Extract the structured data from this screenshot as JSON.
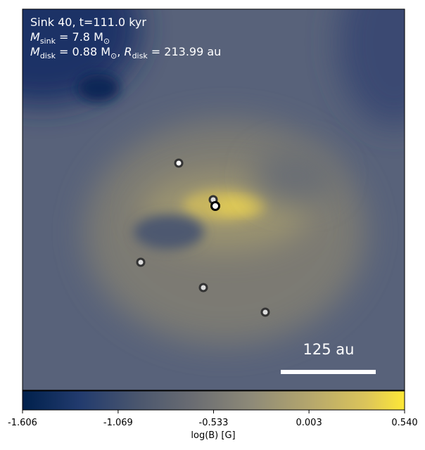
{
  "chart_data": {
    "type": "image",
    "header": "Sink 40, t=111.0 kyr",
    "sink_mass": {
      "symbol": "M",
      "subscript": "sink",
      "rest": " = 7.8 M",
      "unit_subscript": "⊙"
    },
    "disk": {
      "symbol": "M",
      "subscript": "disk",
      "rest": " = 0.88 M",
      "unit_subscript": "⊙",
      "sep": ", ",
      "r_symbol": "R",
      "r_subscript": "disk",
      "r_rest": " = 213.99 au"
    },
    "scale_bar": "125 au",
    "colorbar": {
      "label": "log(B) [G]",
      "lim": [
        -1.606,
        0.54
      ],
      "ticks": [
        -1.606,
        -1.069,
        -0.533,
        0.003,
        {
          "value": 0.54,
          "label": "0.540"
        }
      ]
    }
  }
}
